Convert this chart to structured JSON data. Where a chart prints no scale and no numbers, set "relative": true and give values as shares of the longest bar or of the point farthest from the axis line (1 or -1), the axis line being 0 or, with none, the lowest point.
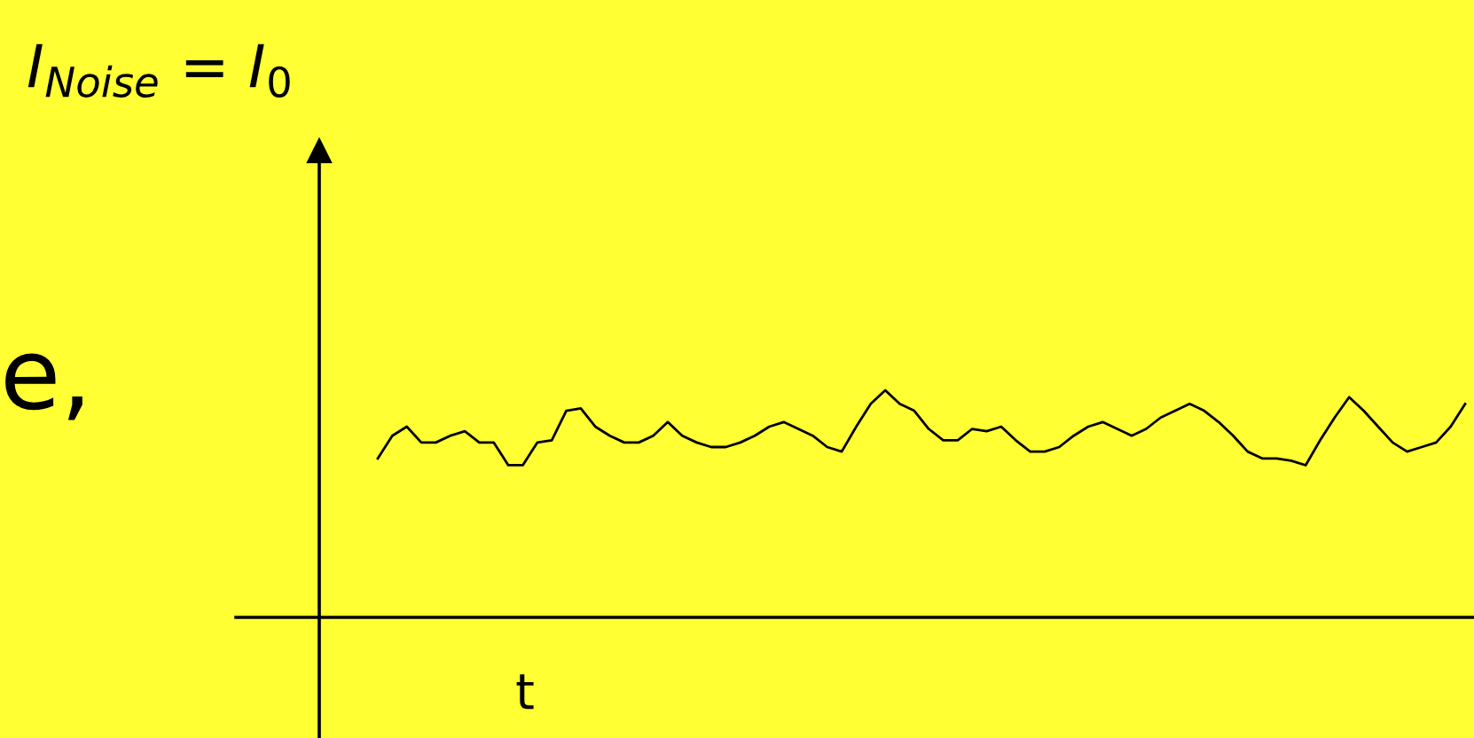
{
  "chart_data": {
    "type": "line",
    "title": "I$_{Noise}$ = I$_{0}$",
    "xlabel": "t",
    "annotations": [
      "e,"
    ],
    "relative": true,
    "categories": [
      null,
      null,
      null,
      null,
      null,
      null,
      null,
      null,
      null,
      null,
      null,
      null,
      null,
      null,
      null,
      null,
      null,
      null,
      null,
      null,
      null,
      null,
      null,
      null,
      null,
      null,
      null,
      null,
      null,
      null,
      null,
      null,
      null,
      null,
      null,
      null,
      null,
      null,
      null,
      null,
      null,
      null,
      null,
      null,
      null,
      null,
      null,
      null,
      null,
      null,
      null,
      null,
      null,
      null,
      null,
      null,
      null,
      null,
      null,
      null,
      null,
      null,
      null,
      null,
      null,
      null,
      null,
      null,
      null,
      null,
      null,
      null,
      null,
      null,
      null,
      null
    ],
    "series": [
      {
        "color": "#000000",
        "values": [
          0.7,
          0.8,
          0.84,
          0.77,
          0.77,
          0.8,
          0.82,
          0.77,
          0.77,
          0.67,
          0.67,
          0.77,
          0.78,
          0.91,
          0.92,
          0.84,
          0.8,
          0.77,
          0.77,
          0.8,
          0.86,
          0.8,
          0.77,
          0.75,
          0.75,
          0.77,
          0.8,
          0.84,
          0.86,
          0.83,
          0.8,
          0.75,
          0.73,
          0.84,
          0.94,
          1.0,
          0.94,
          0.91,
          0.83,
          0.78,
          0.78,
          0.83,
          0.82,
          0.84,
          0.78,
          0.73,
          0.73,
          0.75,
          0.8,
          0.84,
          0.86,
          0.83,
          0.8,
          0.83,
          0.88,
          0.91,
          0.94,
          0.91,
          0.86,
          0.8,
          0.73,
          0.7,
          0.7,
          0.69,
          0.67,
          0.78,
          0.88,
          0.97,
          0.91,
          0.84,
          0.77,
          0.73,
          0.75,
          0.77,
          0.84,
          0.94
        ]
      }
    ]
  }
}
